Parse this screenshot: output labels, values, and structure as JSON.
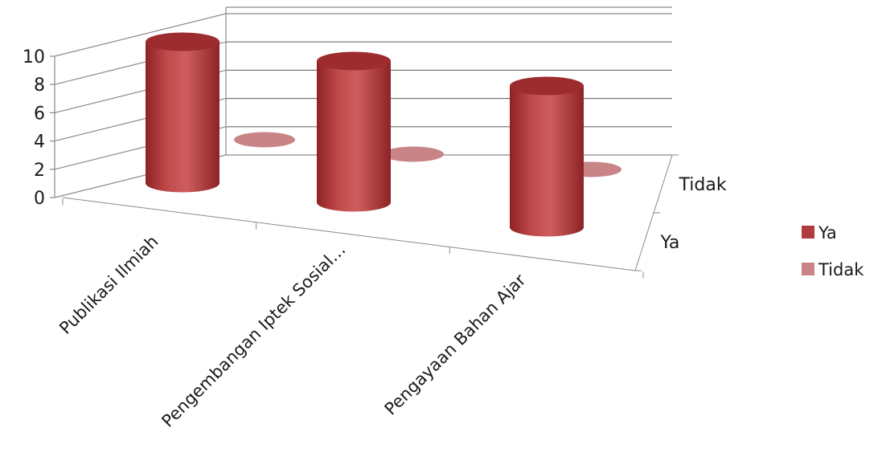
{
  "chart_data": {
    "type": "bar",
    "style": "3d-cylinder",
    "title": "",
    "xlabel": "",
    "ylabel": "",
    "ylim": [
      0,
      10
    ],
    "yticks": [
      "0",
      "2",
      "4",
      "6",
      "8",
      "10"
    ],
    "categories": [
      "Publikasi Ilmiah",
      "Pengembangan Iptek Sosial…",
      "Pengayaan Bahan Ajar"
    ],
    "depth_categories": [
      "Ya",
      "Tidak"
    ],
    "series": [
      {
        "name": "Ya",
        "values": [
          10,
          10,
          10
        ],
        "color": "#b03a3c"
      },
      {
        "name": "Tidak",
        "values": [
          0,
          0,
          0
        ],
        "color": "#c98487"
      }
    ],
    "legend": {
      "position": "right",
      "entries": [
        "Ya",
        "Tidak"
      ]
    },
    "grid": true
  }
}
